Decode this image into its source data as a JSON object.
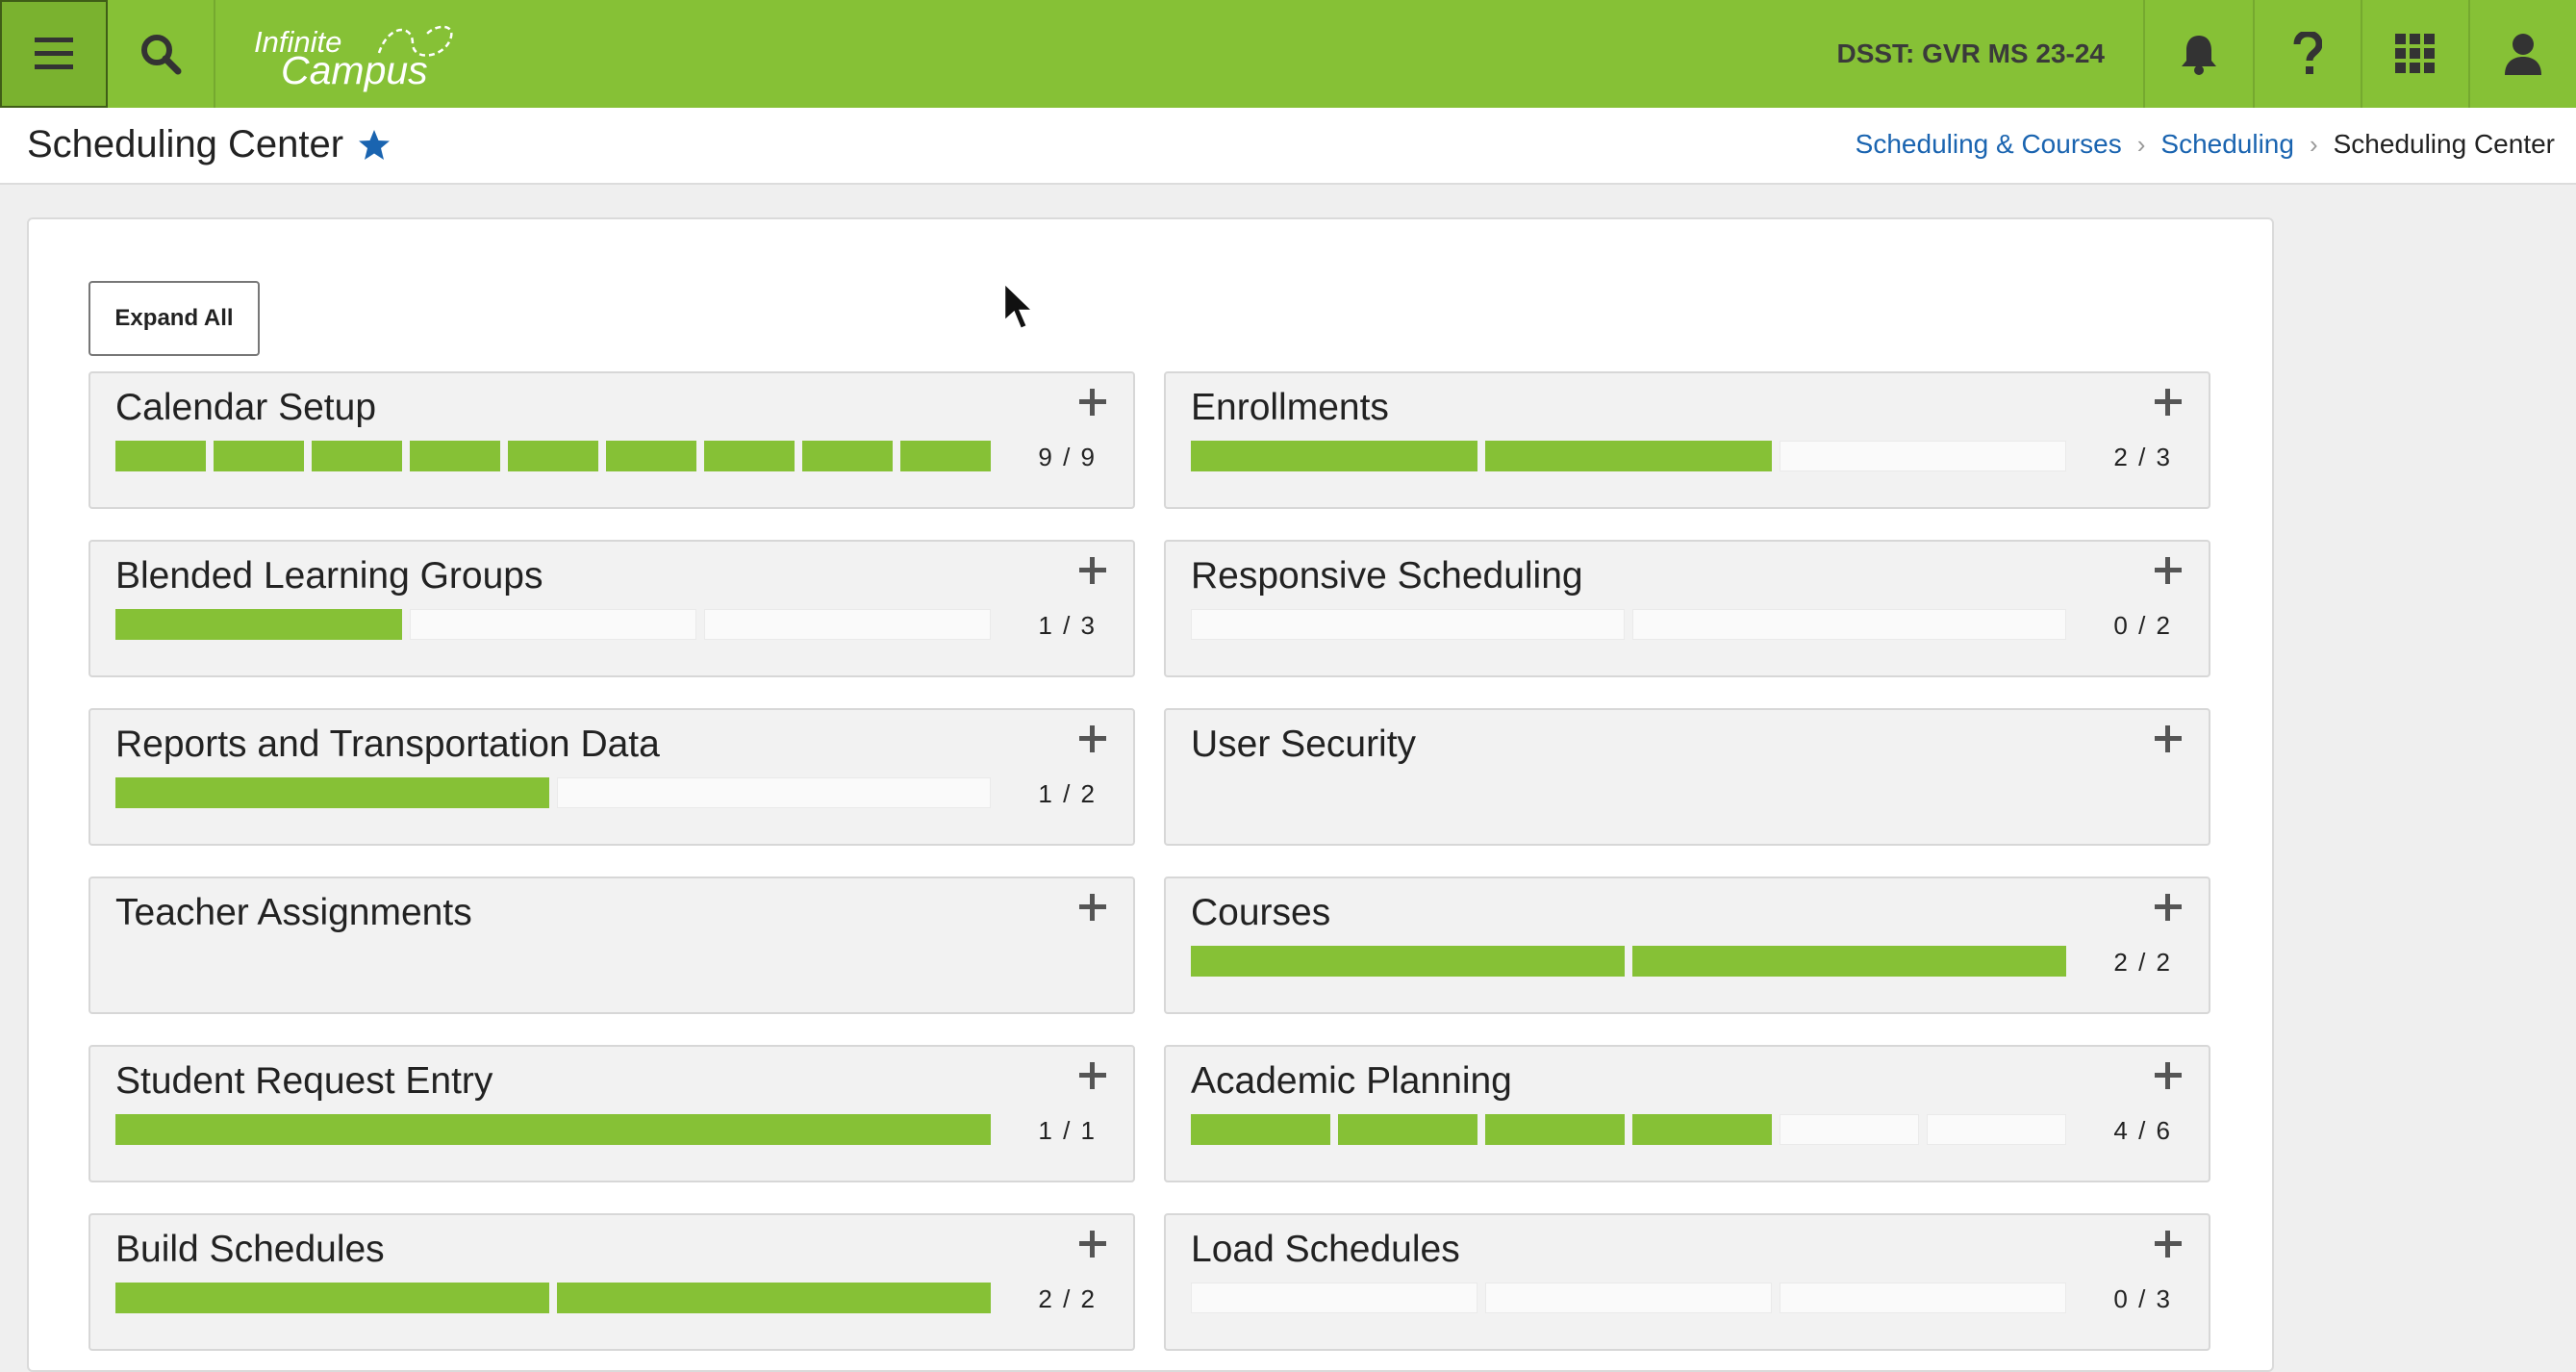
{
  "topbar": {
    "logo_line1": "Infinite",
    "logo_line2": "Campus",
    "school": "DSST: GVR MS 23-24",
    "accent_color": "#86c136",
    "icons": [
      "menu-icon",
      "search-icon",
      "bell-icon",
      "help-icon",
      "apps-grid-icon",
      "user-icon"
    ]
  },
  "header": {
    "title": "Scheduling Center",
    "breadcrumb": [
      "Scheduling & Courses",
      "Scheduling",
      "Scheduling Center"
    ]
  },
  "main": {
    "expand_all_label": "Expand All",
    "cards": [
      {
        "title": "Calendar Setup",
        "done": 9,
        "total": 9,
        "count": "9 / 9"
      },
      {
        "title": "Enrollments",
        "done": 2,
        "total": 3,
        "count": "2 / 3"
      },
      {
        "title": "Blended Learning Groups",
        "done": 1,
        "total": 3,
        "count": "1 / 3"
      },
      {
        "title": "Responsive Scheduling",
        "done": 0,
        "total": 2,
        "count": "0 / 2"
      },
      {
        "title": "Reports and Transportation Data",
        "done": 1,
        "total": 2,
        "count": "1 / 2"
      },
      {
        "title": "User Security",
        "done": 0,
        "total": 0,
        "count": ""
      },
      {
        "title": "Teacher Assignments",
        "done": 0,
        "total": 0,
        "count": ""
      },
      {
        "title": "Courses",
        "done": 2,
        "total": 2,
        "count": "2 / 2"
      },
      {
        "title": "Student Request Entry",
        "done": 1,
        "total": 1,
        "count": "1 / 1"
      },
      {
        "title": "Academic Planning",
        "done": 4,
        "total": 6,
        "count": "4 / 6"
      },
      {
        "title": "Build Schedules",
        "done": 2,
        "total": 2,
        "count": "2 / 2"
      },
      {
        "title": "Load Schedules",
        "done": 0,
        "total": 3,
        "count": "0 / 3"
      }
    ]
  }
}
